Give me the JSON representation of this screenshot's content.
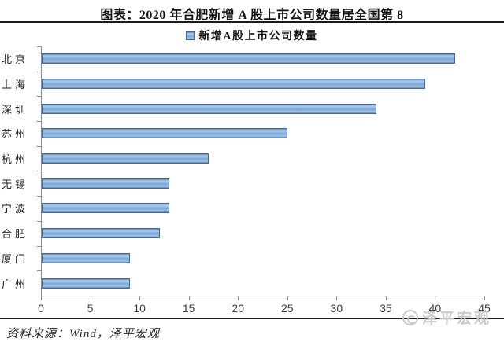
{
  "page": {
    "title": "图表：2020 年合肥新增 A 股上市公司数量居全国第 8",
    "source": "资料来源：Wind，泽平宏观",
    "watermark": "泽平宏观"
  },
  "legend": {
    "label": "新增A股上市公司数量"
  },
  "colors": {
    "bar_fill": "#7fa9d6",
    "bar_border": "#41699c",
    "axis": "#8c8c8c",
    "rule": "#1a1a1a",
    "watermark": "#c9c9c9"
  },
  "chart_data": {
    "type": "bar",
    "orientation": "horizontal",
    "title": "图表：2020 年合肥新增 A 股上市公司数量居全国第 8",
    "categories": [
      "北京",
      "上海",
      "深圳",
      "苏州",
      "杭州",
      "无锡",
      "宁波",
      "合肥",
      "厦门",
      "广州"
    ],
    "series": [
      {
        "name": "新增A股上市公司数量",
        "values": [
          42,
          39,
          34,
          25,
          17,
          13,
          13,
          12,
          9,
          9
        ]
      }
    ],
    "xlabel": "",
    "ylabel": "",
    "xlim": [
      0,
      45
    ],
    "xticks": [
      0,
      5,
      10,
      15,
      20,
      25,
      30,
      35,
      40,
      45
    ],
    "grid": false,
    "legend_position": "top"
  }
}
